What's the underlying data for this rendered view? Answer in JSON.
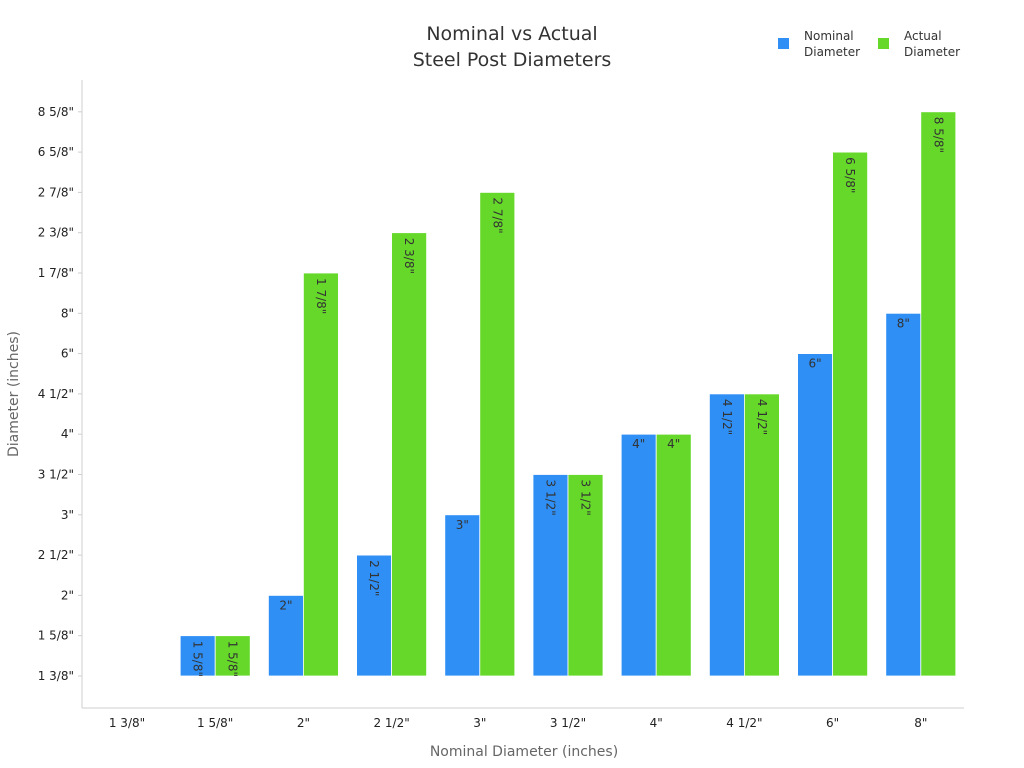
{
  "chart_data": {
    "type": "bar",
    "title": [
      "Nominal vs Actual",
      "Steel Post Diameters"
    ],
    "xlabel": "Nominal Diameter (inches)",
    "ylabel": "Diameter (inches)",
    "categories": [
      "1 3/8\"",
      "1 5/8\"",
      "2\"",
      "2 1/2\"",
      "3\"",
      "3 1/2\"",
      "4\"",
      "4 1/2\"",
      "6\"",
      "8\""
    ],
    "y_ticks": [
      "1 3/8\"",
      "1 5/8\"",
      "2\"",
      "2 1/2\"",
      "3\"",
      "3 1/2\"",
      "4\"",
      "4 1/2\"",
      "6\"",
      "8\"",
      "1 7/8\"",
      "2 3/8\"",
      "2 7/8\"",
      "6 5/8\"",
      "8 5/8\""
    ],
    "ylim": [
      0,
      15
    ],
    "grid": false,
    "legend_position": "top-right",
    "series": [
      {
        "name": "Nominal Diameter",
        "color": "#2f8ff5",
        "values": [
          0,
          1,
          2,
          3,
          4,
          5,
          6,
          7,
          8,
          9
        ],
        "labels": [
          "",
          "1 5/8\"",
          "2\"",
          "2 1/2\"",
          "3\"",
          "3 1/2\"",
          "4\"",
          "4 1/2\"",
          "6\"",
          "8\""
        ],
        "label_rotated": [
          false,
          true,
          false,
          true,
          false,
          true,
          false,
          true,
          false,
          false
        ]
      },
      {
        "name": "Actual Diameter",
        "color": "#66d82a",
        "values": [
          0,
          1,
          10,
          11,
          12,
          5,
          6,
          7,
          13,
          14
        ],
        "labels": [
          "",
          "1 5/8\"",
          "1 7/8\"",
          "2 3/8\"",
          "2 7/8\"",
          "3 1/2\"",
          "4\"",
          "4 1/2\"",
          "6 5/8\"",
          "8 5/8\""
        ],
        "label_rotated": [
          false,
          true,
          true,
          true,
          true,
          true,
          false,
          true,
          true,
          true
        ]
      }
    ]
  }
}
